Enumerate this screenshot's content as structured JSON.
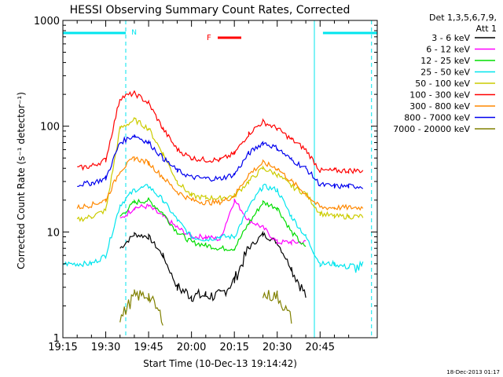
{
  "chart_data": {
    "type": "line",
    "title": "HESSI Observing Summary Count Rates, Corrected",
    "xlabel": "Start Time (10-Dec-13 19:14:42)",
    "ylabel": "Corrected Count Rate (s⁻¹ detector⁻¹)",
    "y_scale": "log",
    "ylim": [
      1,
      1000
    ],
    "xlim_minutes_after_1915": [
      0,
      110
    ],
    "x_tick_labels": [
      "19:15",
      "19:30",
      "19:45",
      "20:00",
      "20:15",
      "20:30",
      "20:45"
    ],
    "y_tick_labels": [
      "1",
      "10",
      "100",
      "1000"
    ],
    "legend_title": [
      "Det 1,3,5,6,7,9,",
      "Att 1"
    ],
    "legend_position": "right",
    "annotations": {
      "night_label": "N",
      "flare_label": "F",
      "timestamp": "18-Dec-2013 01:17"
    },
    "colors": {
      "axes": "#000000",
      "night_bar": "#00e5ee",
      "flare_bar": "#ff0000"
    },
    "x": [
      0,
      5,
      10,
      15,
      20,
      25,
      30,
      35,
      40,
      45,
      50,
      55,
      60,
      65,
      70,
      75,
      80,
      85,
      90,
      95,
      100,
      105,
      110
    ],
    "series": [
      {
        "name": "3 - 6 keV",
        "color": "#000000",
        "values": [
          null,
          null,
          null,
          null,
          7,
          9.5,
          9,
          6,
          3,
          2.5,
          2.5,
          2.5,
          3.5,
          7,
          9.5,
          8,
          4.5,
          2.5,
          null,
          null,
          null,
          null,
          null
        ]
      },
      {
        "name": "6 - 12 keV",
        "color": "#ff00ff",
        "values": [
          null,
          null,
          null,
          null,
          13,
          17,
          17.5,
          14,
          11,
          9,
          9,
          8.5,
          20,
          13,
          11,
          8,
          8,
          8,
          null,
          null,
          null,
          null,
          null
        ]
      },
      {
        "name": "12 - 25 keV",
        "color": "#00dd00",
        "values": [
          null,
          null,
          null,
          null,
          14,
          19,
          20,
          15,
          10,
          8,
          7.5,
          7,
          7,
          12,
          19,
          17,
          10,
          7,
          null,
          null,
          null,
          null,
          null
        ]
      },
      {
        "name": "25 - 50 keV",
        "color": "#00e5ee",
        "values": [
          5,
          5,
          5,
          6,
          18,
          25,
          27,
          20,
          13,
          9,
          8.5,
          9,
          9,
          17,
          27,
          25,
          14,
          9,
          5,
          5,
          4.6,
          4.6,
          null
        ]
      },
      {
        "name": "50 - 100 keV",
        "color": "#cccc00",
        "values": [
          null,
          13,
          14,
          16,
          95,
          115,
          95,
          55,
          30,
          22,
          21,
          21,
          22,
          30,
          40,
          35,
          27,
          23,
          15,
          14,
          14,
          14,
          null
        ]
      },
      {
        "name": "100 - 300 keV",
        "color": "#ff0000",
        "values": [
          null,
          40,
          42,
          48,
          185,
          205,
          165,
          95,
          60,
          50,
          48,
          48,
          55,
          85,
          110,
          95,
          75,
          60,
          38,
          38,
          38,
          38,
          null
        ]
      },
      {
        "name": "300 - 800 keV",
        "color": "#ff8800",
        "values": [
          null,
          17,
          18,
          20,
          38,
          50,
          45,
          33,
          24,
          20,
          19,
          19,
          22,
          35,
          45,
          40,
          30,
          23,
          17,
          17,
          17,
          17,
          null
        ]
      },
      {
        "name": "800 - 7000 keV",
        "color": "#0000ee",
        "values": [
          null,
          28,
          29,
          32,
          70,
          82,
          70,
          50,
          38,
          33,
          32,
          32,
          35,
          55,
          70,
          62,
          48,
          40,
          28,
          27,
          27,
          27,
          null
        ]
      },
      {
        "name": "7000 - 20000 keV",
        "color": "#808000",
        "values": [
          null,
          null,
          null,
          null,
          1.5,
          2.5,
          2.5,
          1.5,
          null,
          null,
          null,
          null,
          null,
          null,
          2.5,
          2.5,
          1.5,
          null,
          null,
          null,
          null,
          null,
          null
        ]
      }
    ]
  }
}
